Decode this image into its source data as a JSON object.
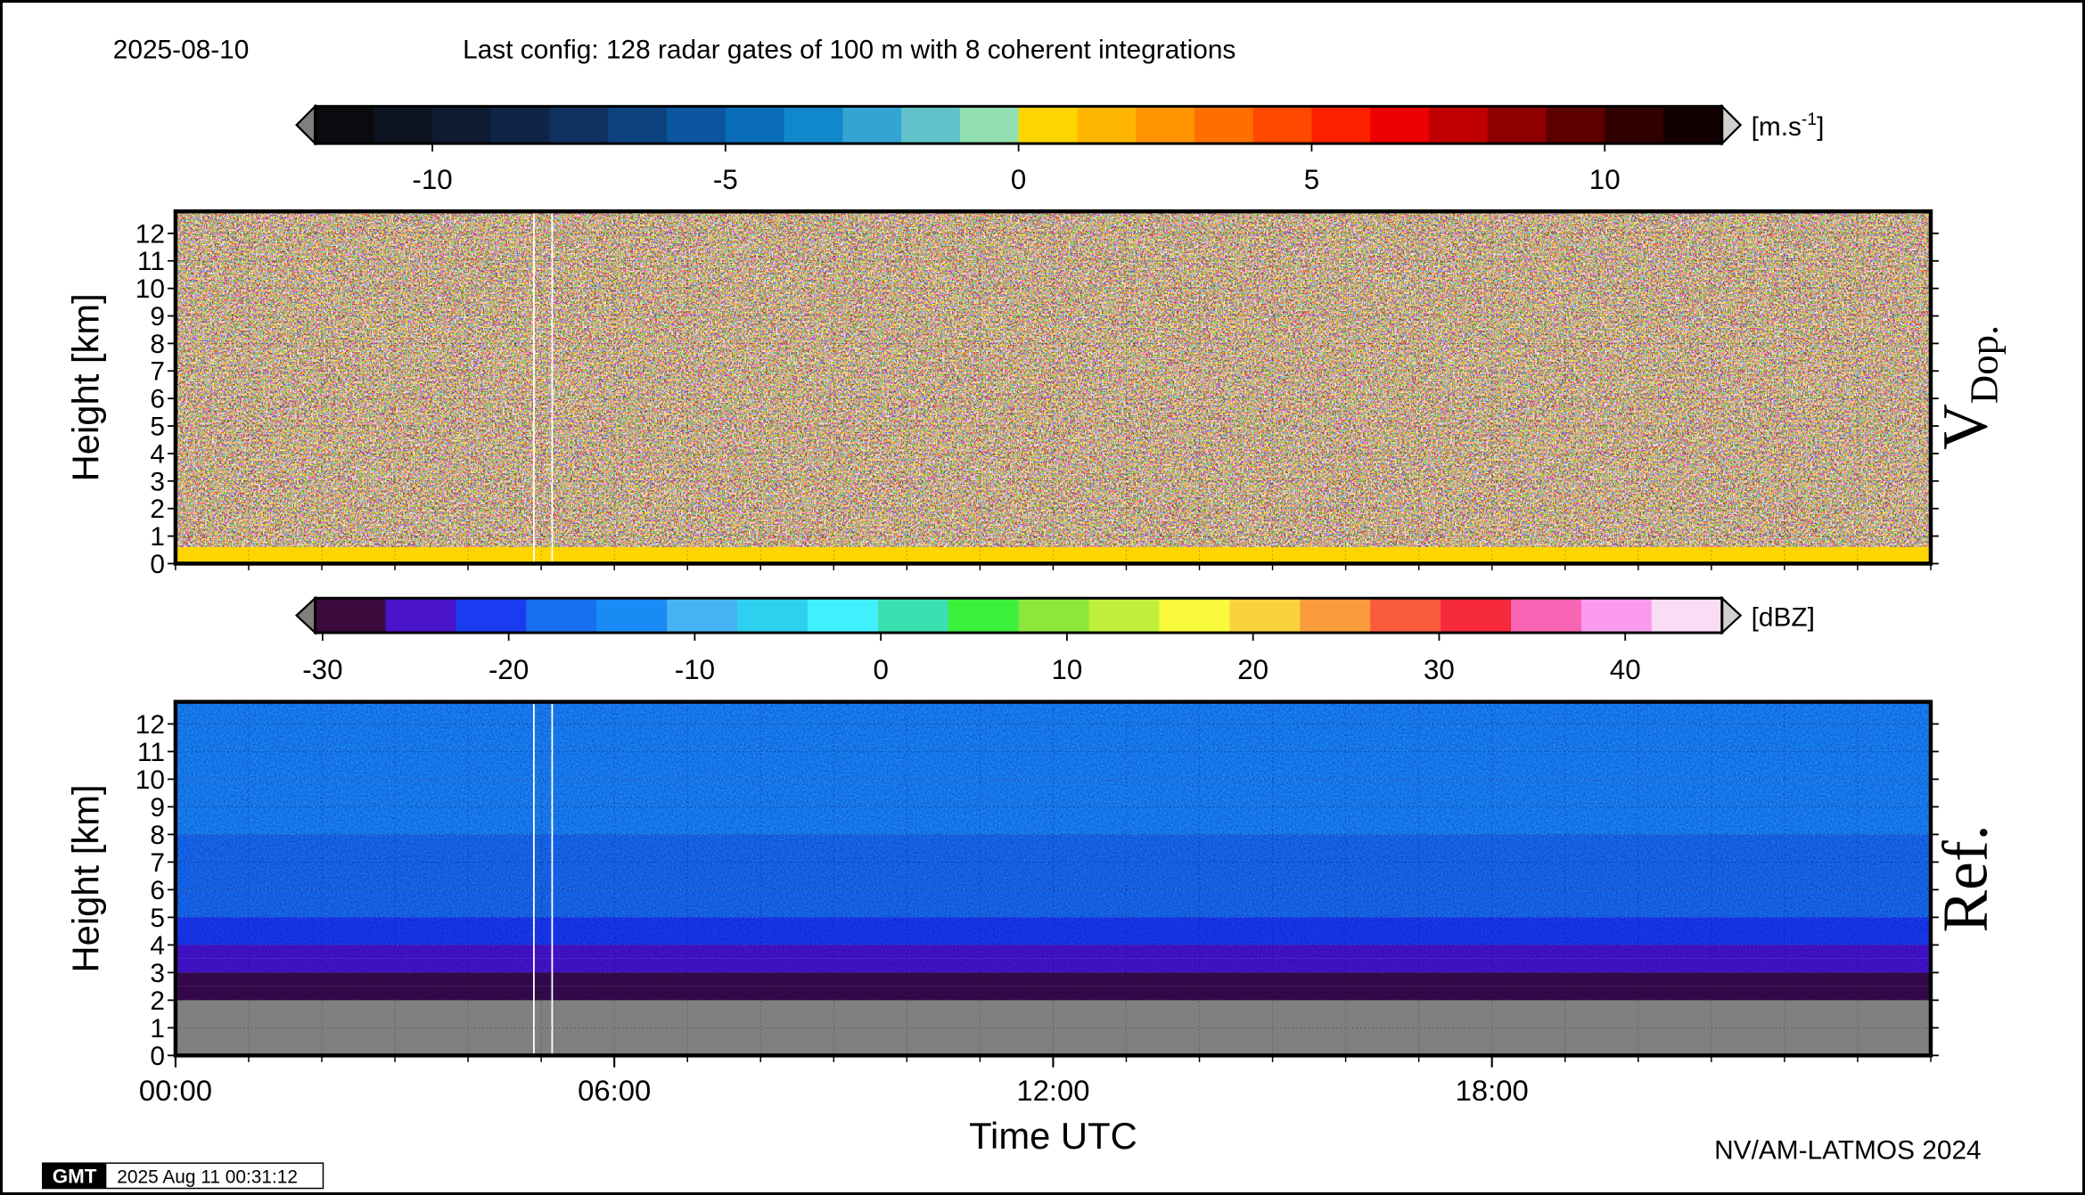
{
  "header": {
    "date": "2025-08-10",
    "config": "Last config: 128 radar gates of 100 m with 8 coherent integrations"
  },
  "chart_data": [
    {
      "type": "heatmap",
      "ylabel": "Height [km]",
      "panel_label": "V",
      "panel_label_sub": "Dop.",
      "xlim": [
        0,
        24
      ],
      "xgrid": [
        0,
        1,
        2,
        3,
        4,
        5,
        6,
        7,
        8,
        9,
        10,
        11,
        12,
        13,
        14,
        15,
        16,
        17,
        18,
        19,
        20,
        21,
        22,
        23,
        24
      ],
      "ylim": [
        0,
        12.8
      ],
      "yticks": [
        0,
        1,
        2,
        3,
        4,
        5,
        6,
        7,
        8,
        9,
        10,
        11,
        12
      ],
      "grid": true,
      "y_bins": [
        0,
        0.6,
        12.8
      ],
      "values": [
        0.5,
        null
      ],
      "nodata_style": "noise",
      "colorbar": {
        "clim": [
          -12,
          12
        ],
        "ticks": [
          -10,
          -5,
          0,
          5,
          10
        ],
        "label": "[m.s",
        "label_sup": "-1",
        "label_end": "]",
        "colors": [
          "#0b0b0f",
          "#0d1220",
          "#0f1a33",
          "#102447",
          "#0f3160",
          "#0d4280",
          "#0b569f",
          "#0a6db9",
          "#1188cc",
          "#33a4d4",
          "#62c2c9",
          "#92e0b0",
          "#ffd500",
          "#ffb600",
          "#ff9400",
          "#ff6f00",
          "#ff4800",
          "#ff2000",
          "#ed0000",
          "#c00000",
          "#8e0000",
          "#5c0000",
          "#300000",
          "#120000"
        ]
      }
    },
    {
      "type": "heatmap",
      "ylabel": "Height [km]",
      "panel_label": "Ref.",
      "xlabel": "Time UTC",
      "xlim": [
        0,
        24
      ],
      "xgrid": [
        0,
        1,
        2,
        3,
        4,
        5,
        6,
        7,
        8,
        9,
        10,
        11,
        12,
        13,
        14,
        15,
        16,
        17,
        18,
        19,
        20,
        21,
        22,
        23,
        24
      ],
      "xticks": [
        {
          "value": 0,
          "label": "00:00"
        },
        {
          "value": 6,
          "label": "06:00"
        },
        {
          "value": 12,
          "label": "12:00"
        },
        {
          "value": 18,
          "label": "18:00"
        }
      ],
      "ylim": [
        0,
        12.8
      ],
      "yticks": [
        0,
        1,
        2,
        3,
        4,
        5,
        6,
        7,
        8,
        9,
        10,
        11,
        12
      ],
      "grid": true,
      "y_bins": [
        0,
        2,
        2.5,
        3,
        3.5,
        4,
        5,
        6,
        8,
        10,
        12.8
      ],
      "values": [
        null,
        -28,
        -27,
        -25,
        -23,
        -21,
        -19,
        -17,
        -15,
        -14
      ],
      "nodata_color": "#808080",
      "colorbar": {
        "clim": [
          -30.4,
          45.2
        ],
        "ticks": [
          -30,
          -20,
          -10,
          0,
          10,
          20,
          30,
          40
        ],
        "label": "[dBZ]",
        "colors": [
          "#3c0a3c",
          "#4a14c8",
          "#1a3cf0",
          "#1870ee",
          "#1a8af5",
          "#46b4f2",
          "#2ed0f0",
          "#40f0ff",
          "#3ce0b0",
          "#3cf03c",
          "#8ce63c",
          "#c0f03c",
          "#fafa3c",
          "#fad23c",
          "#fa9b3c",
          "#fa5a3c",
          "#f5283c",
          "#fa64b4",
          "#fa9bf0",
          "#fadcf5"
        ]
      }
    }
  ],
  "footer": {
    "credit": "NV/AM-LATMOS 2024",
    "logo": "GMT",
    "timestamp": "2025 Aug 11 00:31:12"
  }
}
